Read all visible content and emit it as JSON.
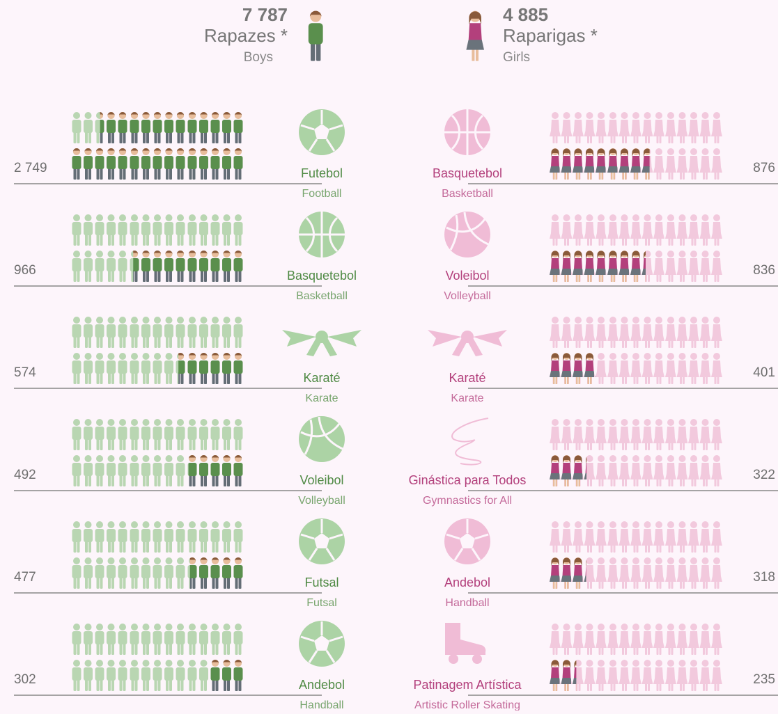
{
  "header": {
    "boys": {
      "total": "7 787",
      "label": "Rapazes *",
      "label_en": "Boys"
    },
    "girls": {
      "total": "4 885",
      "label": "Raparigas *",
      "label_en": "Girls"
    }
  },
  "boys": [
    {
      "value": 2749,
      "label": "2 749",
      "sport": "Futebol",
      "sport_en": "Football"
    },
    {
      "value": 966,
      "label": "966",
      "sport": "Basquetebol",
      "sport_en": "Basketball"
    },
    {
      "value": 574,
      "label": "574",
      "sport": "Karaté",
      "sport_en": "Karate"
    },
    {
      "value": 492,
      "label": "492",
      "sport": "Voleibol",
      "sport_en": "Volleyball"
    },
    {
      "value": 477,
      "label": "477",
      "sport": "Futsal",
      "sport_en": "Futsal"
    },
    {
      "value": 302,
      "label": "302",
      "sport": "Andebol",
      "sport_en": "Handball"
    }
  ],
  "girls": [
    {
      "value": 876,
      "label": "876",
      "sport": "Basquetebol",
      "sport_en": "Basketball"
    },
    {
      "value": 836,
      "label": "836",
      "sport": "Voleibol",
      "sport_en": "Volleyball"
    },
    {
      "value": 401,
      "label": "401",
      "sport": "Karaté",
      "sport_en": "Karate"
    },
    {
      "value": 322,
      "label": "322",
      "sport": "Ginástica para Todos",
      "sport_en": "Gymnastics for All"
    },
    {
      "value": 318,
      "label": "318",
      "sport": "Andebol",
      "sport_en": "Handball"
    },
    {
      "value": 235,
      "label": "235",
      "sport": "Patinagem Artística",
      "sport_en": "Artistic Roller Skating"
    }
  ]
}
